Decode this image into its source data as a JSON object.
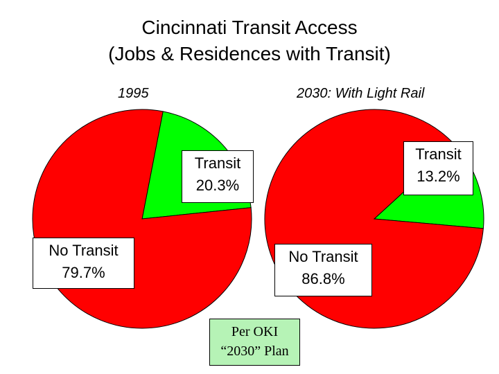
{
  "chart_data": [
    {
      "type": "pie",
      "title": "Cincinnati Transit Access",
      "subtitle": "(Jobs & Residences with Transit)",
      "chart_label": "1995",
      "slices": [
        {
          "name": "Transit",
          "value": 20.3,
          "label": "20.3%",
          "color": "#00ff00"
        },
        {
          "name": "No Transit",
          "value": 79.7,
          "label": "79.7%",
          "color": "#ff0000"
        }
      ]
    },
    {
      "type": "pie",
      "chart_label": "2030: With Light Rail",
      "slices": [
        {
          "name": "Transit",
          "value": 13.2,
          "label": "13.2%",
          "color": "#00ff00"
        },
        {
          "name": "No Transit",
          "value": 86.8,
          "label": "86.8%",
          "color": "#ff0000"
        }
      ]
    }
  ],
  "title_line1": "Cincinnati Transit Access",
  "title_line2": "(Jobs & Residences with Transit)",
  "pie1_label": "1995",
  "pie2_label": "2030: With Light Rail",
  "pie1_transit_name": "Transit",
  "pie1_transit_pct": "20.3%",
  "pie1_notransit_name": "No Transit",
  "pie1_notransit_pct": "79.7%",
  "pie2_transit_name": "Transit",
  "pie2_transit_pct": "13.2%",
  "pie2_notransit_name": "No Transit",
  "pie2_notransit_pct": "86.8%",
  "source_line1": "Per OKI",
  "source_line2": "“2030” Plan"
}
